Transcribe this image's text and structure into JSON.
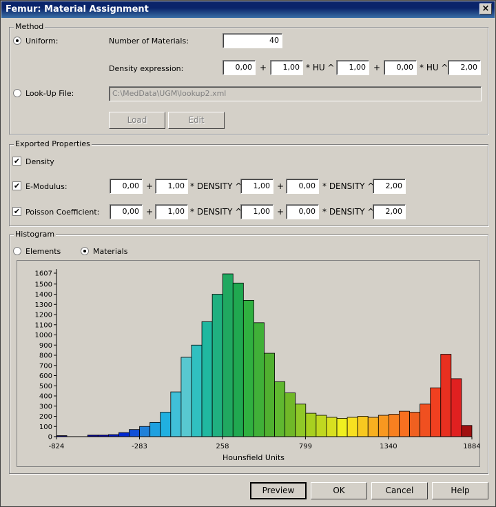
{
  "window": {
    "title": "Femur: Material Assignment",
    "close_glyph": "×"
  },
  "method": {
    "title": "Method",
    "uniform_label": "Uniform:",
    "num_materials_label": "Number of Materials:",
    "num_materials_value": "40",
    "density_expr_label": "Density expression:",
    "density_expr": {
      "a": "0,00",
      "b": "1,00",
      "c": "1,00",
      "d": "0,00",
      "e": "2,00"
    },
    "plus": "+",
    "hu_pow": "* HU ^",
    "lookup_label": "Look-Up File:",
    "lookup_path": "C:\\MedData\\UGM\\lookup2.xml",
    "load_label": "Load",
    "edit_label": "Edit",
    "selected": "uniform"
  },
  "exported": {
    "title": "Exported Properties",
    "density_label": "Density",
    "emodulus_label": "E-Modulus:",
    "poisson_label": "Poisson Coefficient:",
    "density_pow": "* DENSITY ^",
    "plus": "+",
    "emodulus": {
      "a": "0,00",
      "b": "1,00",
      "c": "1,00",
      "d": "0,00",
      "e": "2,00"
    },
    "poisson": {
      "a": "0,00",
      "b": "1,00",
      "c": "1,00",
      "d": "0,00",
      "e": "2,00"
    },
    "checked": {
      "density": true,
      "emodulus": true,
      "poisson": true
    }
  },
  "histogram": {
    "title": "Histogram",
    "elements_label": "Elements",
    "materials_label": "Materials",
    "selected": "materials"
  },
  "chart_data": {
    "type": "bar",
    "xlabel": "Hounsfield Units",
    "ylabel": "",
    "xlim": [
      -824,
      1884
    ],
    "ylim": [
      0,
      1607
    ],
    "x_ticks": [
      -824,
      -283,
      258,
      799,
      1340,
      1884
    ],
    "y_ticks": [
      0,
      100,
      200,
      300,
      400,
      500,
      600,
      700,
      800,
      900,
      1000,
      1100,
      1200,
      1300,
      1400,
      1500,
      1607
    ],
    "values": [
      10,
      0,
      0,
      15,
      15,
      20,
      40,
      70,
      100,
      140,
      240,
      440,
      780,
      900,
      1130,
      1400,
      1600,
      1510,
      1340,
      1120,
      820,
      540,
      430,
      320,
      230,
      210,
      190,
      180,
      190,
      200,
      190,
      210,
      220,
      250,
      240,
      320,
      480,
      810,
      570,
      110
    ],
    "colors": [
      "#00008b",
      "#0a0a8a",
      "#000080",
      "#00009a",
      "#0000b0",
      "#0018c0",
      "#0028d0",
      "#1050d8",
      "#2080d8",
      "#1ea0e0",
      "#20b0e0",
      "#40c0d8",
      "#58c8d0",
      "#30c0c0",
      "#20b8a0",
      "#20b080",
      "#20a860",
      "#20a850",
      "#30b040",
      "#40b038",
      "#50b030",
      "#60b830",
      "#70b828",
      "#90c828",
      "#a8d020",
      "#c0d820",
      "#d8e020",
      "#f0f020",
      "#f8e020",
      "#f8c820",
      "#f8b020",
      "#f89820",
      "#f88020",
      "#f87020",
      "#f06020",
      "#f05020",
      "#f04020",
      "#e83020",
      "#e02020",
      "#a01010"
    ]
  },
  "buttons": {
    "preview": "Preview",
    "ok": "OK",
    "cancel": "Cancel",
    "help": "Help"
  }
}
